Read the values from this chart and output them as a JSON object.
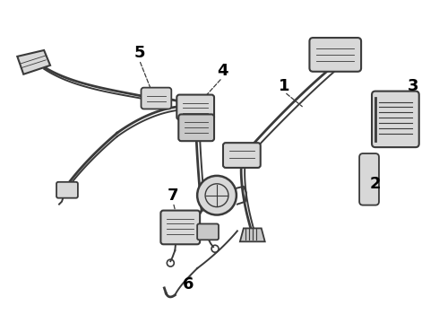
{
  "background_color": "#ffffff",
  "line_color": "#3a3a3a",
  "label_color": "#000000",
  "label_fontsize": 13,
  "figsize": [
    4.9,
    3.6
  ],
  "dpi": 100,
  "border_color": "#cccccc",
  "component_fill": "#d8d8d8",
  "component_fill2": "#c8c8c8"
}
